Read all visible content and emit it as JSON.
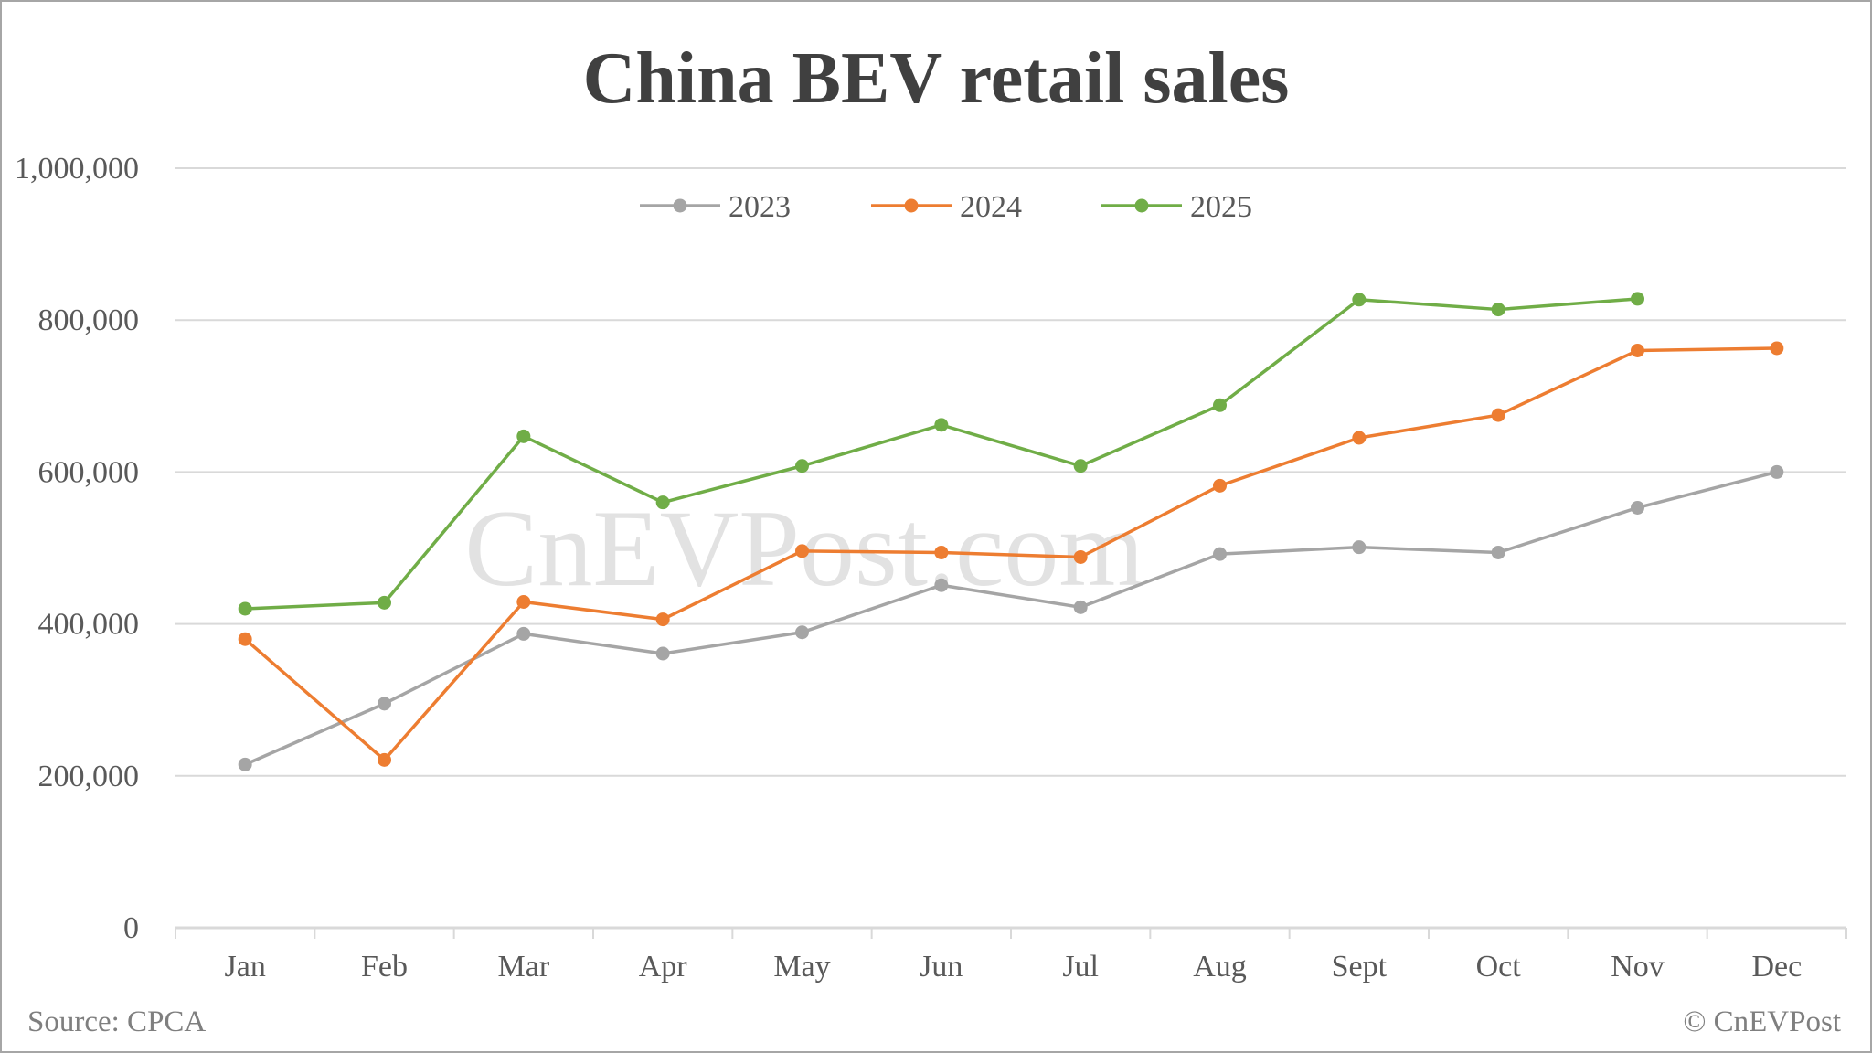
{
  "title": "China BEV retail sales",
  "watermark": "CnEVPost.com",
  "footer": {
    "source": "Source: CPCA",
    "copyright": "© CnEVPost"
  },
  "colors": {
    "2023": "#a5a5a5",
    "2024": "#ed7d31",
    "2025": "#70ad47",
    "grid": "#d9d9d9",
    "axis_text": "#595959",
    "title": "#404040"
  },
  "chart_data": {
    "type": "line",
    "title": "China BEV retail sales",
    "xlabel": "",
    "ylabel": "",
    "categories": [
      "Jan",
      "Feb",
      "Mar",
      "Apr",
      "May",
      "Jun",
      "Jul",
      "Aug",
      "Sept",
      "Oct",
      "Nov",
      "Dec"
    ],
    "ylim": [
      0,
      1000000
    ],
    "yticks": [
      0,
      200000,
      400000,
      600000,
      800000,
      1000000
    ],
    "ytick_labels": [
      "0",
      "200,000",
      "400,000",
      "600,000",
      "800,000",
      "1,000,000"
    ],
    "grid": true,
    "legend_position": "top",
    "series": [
      {
        "name": "2023",
        "color": "#a5a5a5",
        "values": [
          215000,
          295000,
          387000,
          361000,
          389000,
          451000,
          422000,
          492000,
          501000,
          494000,
          553000,
          600000
        ]
      },
      {
        "name": "2024",
        "color": "#ed7d31",
        "values": [
          380000,
          221000,
          429000,
          406000,
          496000,
          494000,
          488000,
          582000,
          645000,
          675000,
          760000,
          763000
        ]
      },
      {
        "name": "2025",
        "color": "#70ad47",
        "values": [
          420000,
          428000,
          647000,
          560000,
          608000,
          662000,
          608000,
          688000,
          827000,
          814000,
          828000,
          null
        ]
      }
    ]
  }
}
